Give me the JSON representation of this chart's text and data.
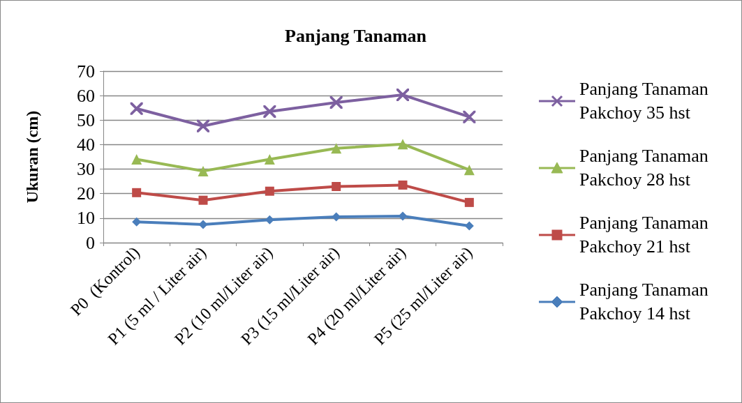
{
  "chart_data": {
    "type": "line",
    "title": "Panjang Tanaman",
    "ylabel": "Ukuran (cm)",
    "categories": [
      "P0  (Kontrol)",
      "P1 (5 ml / Liter air)",
      "P2 (10 ml/Liter air)",
      "P3 (15 ml/Liter air)",
      "P4 (20 ml/Liter air)",
      "P5 (25 ml/Liter air)"
    ],
    "series": [
      {
        "name": "Panjang Tanaman Pakchoy 35 hst",
        "color": "#7d60a0",
        "marker": "cross",
        "values": [
          54.7,
          47.6,
          53.5,
          57.2,
          60.3,
          51.3
        ]
      },
      {
        "name": "Panjang Tanaman Pakchoy 28 hst",
        "color": "#98b954",
        "marker": "triangle",
        "values": [
          34,
          29.2,
          34,
          38.5,
          40.2,
          29.7
        ]
      },
      {
        "name": "Panjang Tanaman Pakchoy 21 hst",
        "color": "#be4b48",
        "marker": "square",
        "values": [
          20.4,
          17.3,
          21,
          22.9,
          23.5,
          16.4
        ]
      },
      {
        "name": "Panjang Tanaman Pakchoy 14 hst",
        "color": "#4a7ebb",
        "marker": "diamond",
        "values": [
          8.5,
          7.4,
          9.3,
          10.5,
          10.8,
          6.8
        ]
      }
    ],
    "ylim": [
      0,
      70
    ],
    "yticks": [
      0,
      10,
      20,
      30,
      40,
      50,
      60,
      70
    ],
    "grid": "y",
    "legend": "right",
    "line_style": "solid"
  }
}
